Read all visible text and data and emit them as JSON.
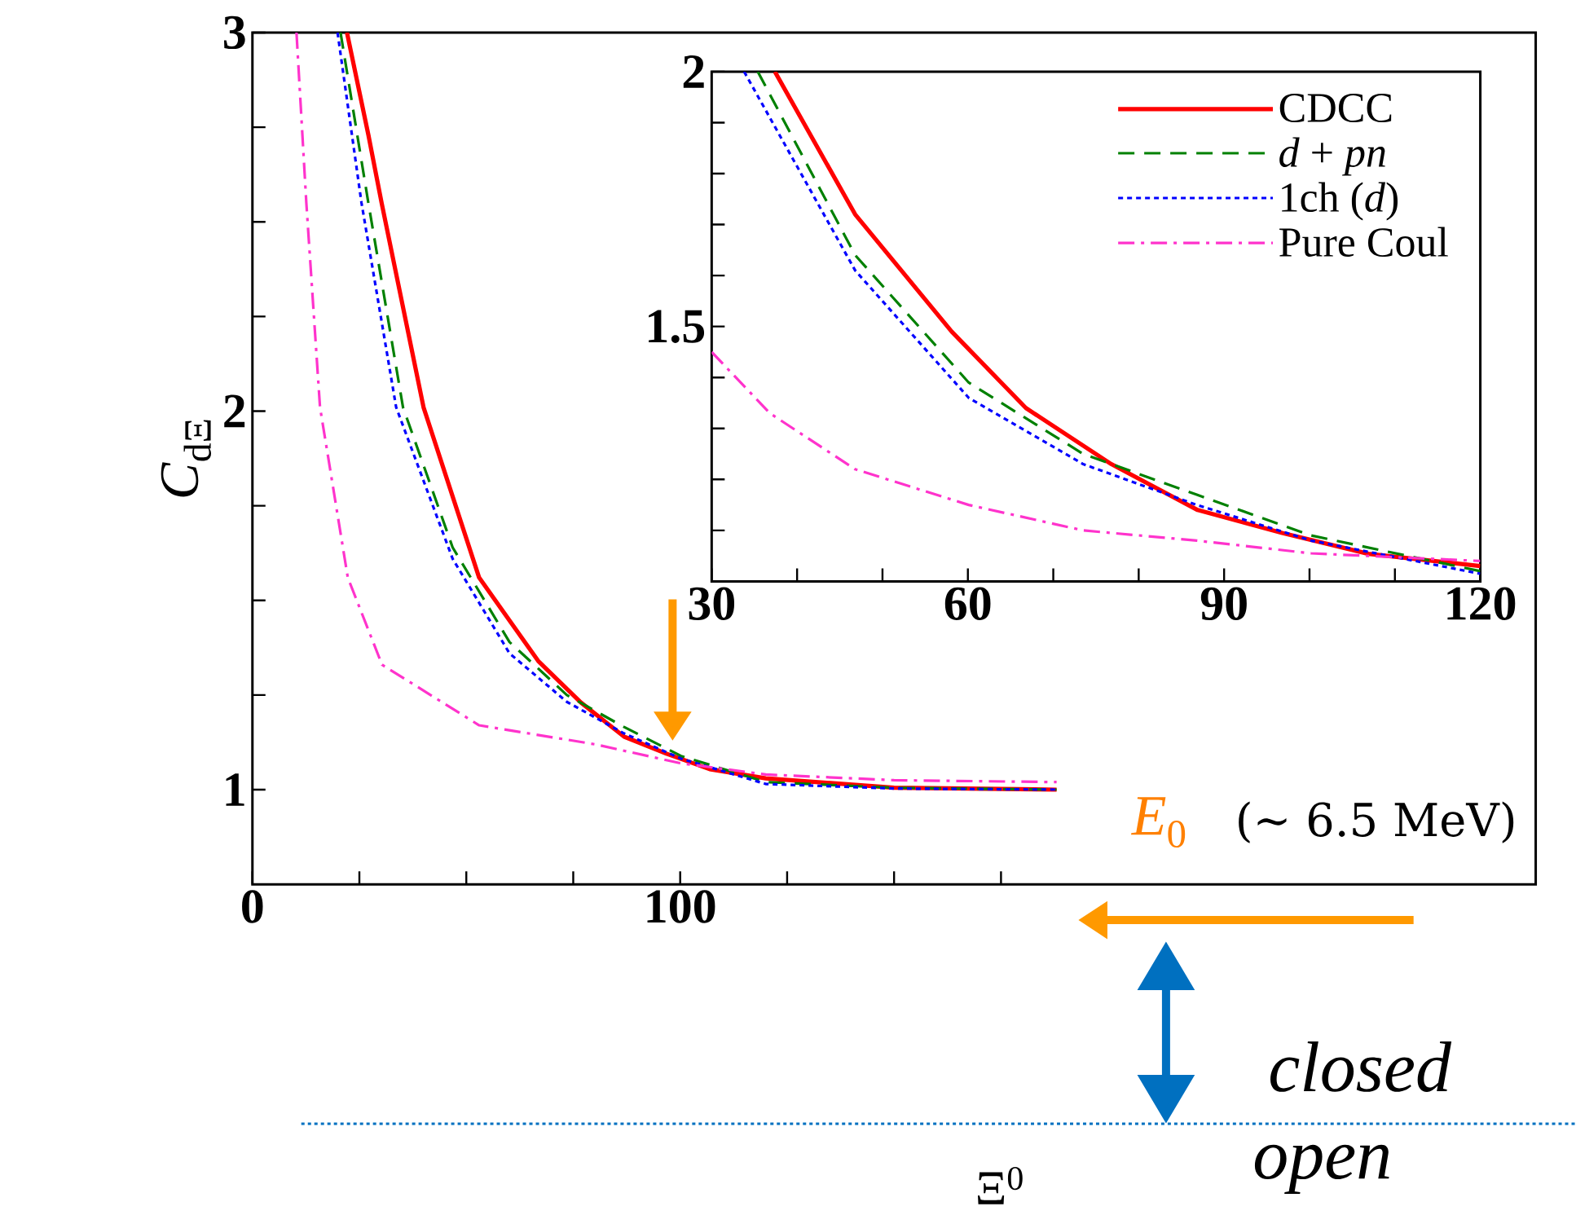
{
  "chart_data": [
    {
      "type": "line",
      "ylabel": "*C*$_{dΞ}$",
      "xlim": [
        0,
        300
      ],
      "ylim": [
        0.75,
        3
      ],
      "xticks": [
        0,
        {
          "value": 25,
          "label": null
        },
        {
          "value": 50,
          "label": null
        },
        {
          "value": 75,
          "label": null
        },
        100,
        {
          "value": 125,
          "label": null
        },
        {
          "value": 150,
          "label": null
        },
        {
          "value": 175,
          "label": null
        }
      ],
      "yticks": [
        1,
        {
          "value": 1.25,
          "label": null
        },
        {
          "value": 1.5,
          "label": null
        },
        {
          "value": 1.75,
          "label": null
        },
        2,
        {
          "value": 2.25,
          "label": null
        },
        {
          "value": 2.5,
          "label": null
        },
        {
          "value": 2.75,
          "label": null
        },
        3
      ],
      "legend": false,
      "series": [
        {
          "color": "#ff0000",
          "line_style": "solid",
          "x": [
            22.1,
            27.1,
            30.2,
            40,
            53,
            66.8,
            76.8,
            86.9,
            96.8,
            106.9,
            120,
            150,
            188
          ],
          "values": [
            3,
            2.73,
            2.55,
            2.01,
            1.56,
            1.34,
            1.23,
            1.14,
            1.095,
            1.054,
            1.03,
            1.005,
            1.0
          ]
        },
        {
          "color": "#008000",
          "line_style": "dashed",
          "x": [
            20.6,
            27.1,
            35.2,
            46.8,
            60.1,
            73.5,
            86.8,
            100.2,
            120,
            150,
            188
          ],
          "values": [
            3,
            2.55,
            2.01,
            1.64,
            1.39,
            1.25,
            1.166,
            1.089,
            1.02,
            1.005,
            1.0
          ]
        },
        {
          "color": "#0000ff",
          "line_style": "dotted",
          "x": [
            19.9,
            25.5,
            33.6,
            46.8,
            60.1,
            73.5,
            86.8,
            100.2,
            120,
            150,
            188
          ],
          "values": [
            3,
            2.55,
            2.01,
            1.61,
            1.36,
            1.232,
            1.149,
            1.082,
            1.015,
            1.003,
            1.0
          ]
        },
        {
          "color": "#ff33cc",
          "line_style": "dashdot",
          "x": [
            10.3,
            12.6,
            15.8,
            22.3,
            30.3,
            53,
            80,
            100,
            120,
            150,
            188
          ],
          "values": [
            3,
            2.55,
            2.01,
            1.56,
            1.33,
            1.17,
            1.12,
            1.07,
            1.04,
            1.025,
            1.02
          ]
        }
      ],
      "annotations": [
        "*E*$_{0}$",
        "(∼ 6.5 MeV)",
        "*closed*",
        "*open*",
        "Ξ$^{0}$"
      ]
    },
    {
      "type": "line",
      "xlim": [
        30,
        120
      ],
      "ylim": [
        1,
        2
      ],
      "xticks": [
        30,
        {
          "value": 40,
          "label": null
        },
        {
          "value": 50,
          "label": null
        },
        60,
        {
          "value": 70,
          "label": null
        },
        {
          "value": 80,
          "label": null
        },
        90,
        {
          "value": 100,
          "label": null
        },
        {
          "value": 110,
          "label": null
        },
        120
      ],
      "yticks": [
        {
          "value": 1.1,
          "label": null
        },
        {
          "value": 1.2,
          "label": null
        },
        {
          "value": 1.3,
          "label": null
        },
        {
          "value": 1.4,
          "label": null
        },
        1.5,
        {
          "value": 1.6,
          "label": null
        },
        {
          "value": 1.7,
          "label": null
        },
        {
          "value": 1.8,
          "label": null
        },
        {
          "value": 1.9,
          "label": null
        },
        2
      ],
      "legend": "top right",
      "series": [
        {
          "name": "CDCC",
          "color": "#ff0000",
          "line_style": "solid",
          "x": [
            37.4,
            46.8,
            58.1,
            66.8,
            76.8,
            86.9,
            96.8,
            106.9,
            120
          ],
          "values": [
            2,
            1.72,
            1.49,
            1.34,
            1.23,
            1.14,
            1.095,
            1.054,
            1.03
          ]
        },
        {
          "name": "*d* + *pn*",
          "color": "#008000",
          "line_style": "dashed",
          "x": [
            35.4,
            46.8,
            60.1,
            73.5,
            86.8,
            100.2,
            120
          ],
          "values": [
            2,
            1.64,
            1.39,
            1.25,
            1.17,
            1.09,
            1.02
          ]
        },
        {
          "name": "1ch (*d*)",
          "color": "#0000ff",
          "line_style": "dotted",
          "x": [
            33.8,
            46.8,
            60.1,
            73.5,
            86.8,
            100.2,
            120
          ],
          "values": [
            2,
            1.61,
            1.36,
            1.23,
            1.15,
            1.08,
            1.015
          ]
        },
        {
          "name": "Pure Coul",
          "color": "#ff33cc",
          "line_style": "dashdot",
          "x": [
            30,
            36.8,
            46.8,
            60.1,
            73.5,
            86.8,
            100.2,
            120
          ],
          "values": [
            1.45,
            1.33,
            1.22,
            1.15,
            1.1,
            1.08,
            1.055,
            1.04
          ]
        }
      ]
    }
  ]
}
